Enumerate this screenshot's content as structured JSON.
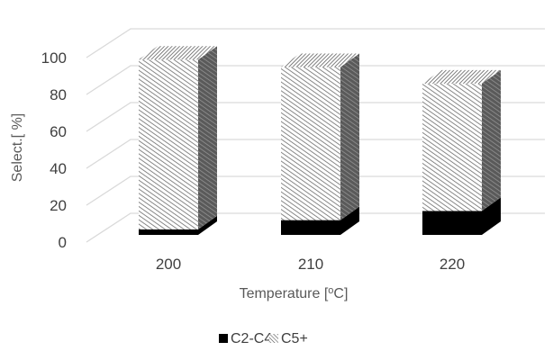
{
  "chart_data": {
    "type": "bar",
    "stacked": true,
    "three_d": true,
    "categories": [
      "200",
      "210",
      "220"
    ],
    "series": [
      {
        "name": "C2-C4",
        "values": [
          3,
          8,
          13
        ],
        "pattern": "solid",
        "color": "#000000"
      },
      {
        "name": "C5+",
        "values": [
          92,
          83,
          69
        ],
        "pattern": "diagonal-hatch",
        "color": "#7f7f7f"
      }
    ],
    "y_ticks": [
      "0",
      "20",
      "40",
      "60",
      "80",
      "100"
    ],
    "ylim": [
      0,
      100
    ],
    "xlabel": {
      "main": "Temperature [",
      "sup": "o",
      "end": "C]"
    },
    "ylabel": "Select.[ %]",
    "grid": true,
    "legend_position": "bottom"
  }
}
